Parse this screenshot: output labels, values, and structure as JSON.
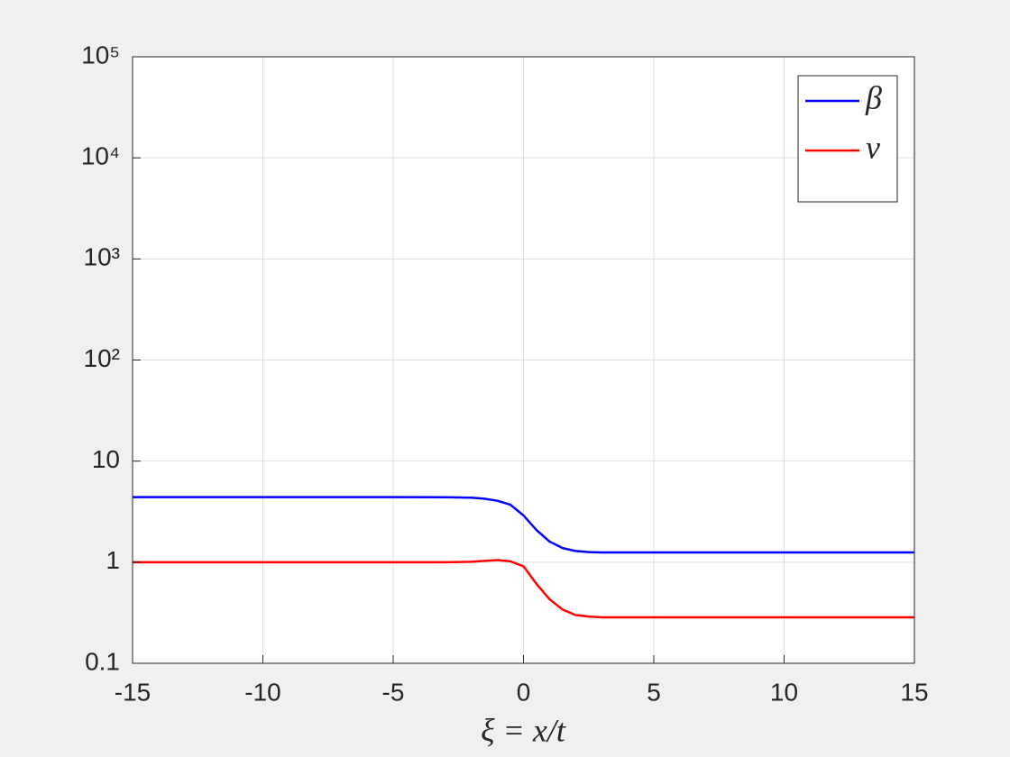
{
  "chart_data": {
    "type": "line",
    "xlabel": "ξ = x/t",
    "x": [
      -15,
      -10,
      -5,
      -3,
      -2,
      -1.5,
      -1,
      -0.5,
      0,
      0.5,
      1,
      1.5,
      2,
      2.5,
      3,
      5,
      10,
      15
    ],
    "series": [
      {
        "name": "β",
        "color": "#0000ff",
        "values": [
          4.4,
          4.4,
          4.4,
          4.39,
          4.35,
          4.25,
          4.05,
          3.7,
          2.9,
          2.08,
          1.6,
          1.38,
          1.29,
          1.26,
          1.25,
          1.25,
          1.25,
          1.25
        ]
      },
      {
        "name": "v",
        "color": "#ff0000",
        "values": [
          1.0,
          1.0,
          1.0,
          1.0,
          1.01,
          1.03,
          1.05,
          1.02,
          0.91,
          0.61,
          0.43,
          0.34,
          0.3,
          0.29,
          0.285,
          0.285,
          0.285,
          0.285
        ]
      }
    ],
    "xlim": [
      -15,
      15
    ],
    "xticks": [
      -15,
      -10,
      -5,
      0,
      5,
      10,
      15
    ],
    "ylim": [
      0.1,
      100000
    ],
    "ylog": true,
    "yticks": [
      0.1,
      1,
      10,
      {
        "value": 100,
        "label": "10²"
      },
      {
        "value": 1000,
        "label": "10³"
      },
      {
        "value": 10000,
        "label": "10⁴"
      },
      {
        "value": 100000,
        "label": "10⁵"
      }
    ],
    "grid": true,
    "legend": "northeast"
  }
}
